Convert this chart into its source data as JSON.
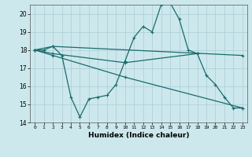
{
  "xlabel": "Humidex (Indice chaleur)",
  "background_color": "#cce8ed",
  "grid_color": "#b0d0d8",
  "line_color": "#1a6b6b",
  "xlim": [
    -0.5,
    23.5
  ],
  "ylim": [
    14,
    20.5
  ],
  "yticks": [
    14,
    15,
    16,
    17,
    18,
    19,
    20
  ],
  "xticks": [
    0,
    1,
    2,
    3,
    4,
    5,
    6,
    7,
    8,
    9,
    10,
    11,
    12,
    13,
    14,
    15,
    16,
    17,
    18,
    19,
    20,
    21,
    22,
    23
  ],
  "line1_x": [
    0,
    1,
    2,
    3,
    4,
    5,
    6,
    7,
    8,
    9,
    10,
    11,
    12,
    13,
    14,
    15,
    16,
    17,
    18,
    19,
    20,
    21,
    22,
    23
  ],
  "line1_y": [
    18,
    18,
    18.2,
    17.7,
    15.4,
    14.3,
    15.3,
    15.4,
    15.5,
    16.1,
    17.4,
    18.7,
    19.3,
    19.0,
    20.5,
    20.6,
    19.7,
    18.0,
    17.8,
    16.6,
    16.1,
    15.4,
    14.8,
    14.8
  ],
  "line2_x": [
    0,
    2,
    23
  ],
  "line2_y": [
    18,
    18.2,
    17.7
  ],
  "line3_x": [
    0,
    2,
    10,
    18
  ],
  "line3_y": [
    18,
    17.8,
    17.3,
    17.8
  ],
  "line4_x": [
    0,
    2,
    10,
    23
  ],
  "line4_y": [
    18,
    17.7,
    16.5,
    14.8
  ]
}
